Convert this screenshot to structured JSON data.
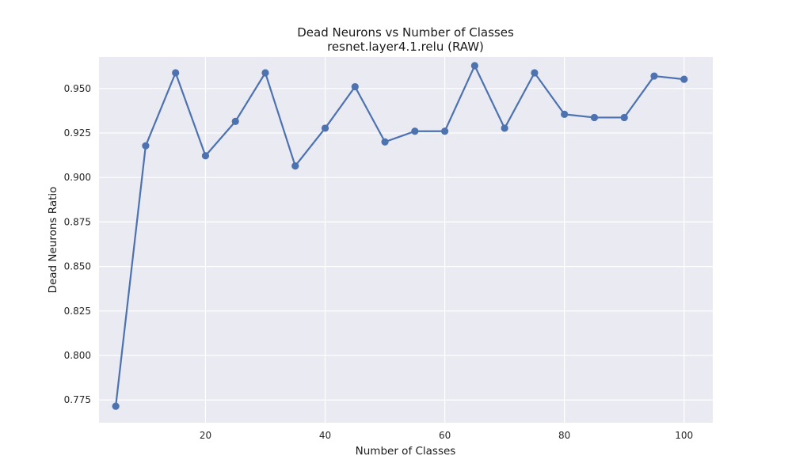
{
  "chart_data": {
    "type": "line",
    "title": "Dead Neurons vs Number of Classes",
    "subtitle": "resnet.layer4.1.relu (RAW)",
    "xlabel": "Number of Classes",
    "ylabel": "Dead Neurons Ratio",
    "xlim": [
      2.2,
      104.8
    ],
    "ylim": [
      0.7622,
      0.9677
    ],
    "xticks": [
      20,
      40,
      60,
      80,
      100
    ],
    "yticks": [
      0.775,
      0.8,
      0.825,
      0.85,
      0.875,
      0.9,
      0.925,
      0.95
    ],
    "xtick_labels": [
      "20",
      "40",
      "60",
      "80",
      "100"
    ],
    "ytick_labels": [
      "0.775",
      "0.800",
      "0.825",
      "0.850",
      "0.875",
      "0.900",
      "0.925",
      "0.950"
    ],
    "grid": true,
    "style": {
      "background": "#eaeaf2",
      "grid_color": "#ffffff",
      "line_color": "#4c72b0"
    },
    "series": [
      {
        "x": [
          5,
          10,
          15,
          20,
          25,
          30,
          35,
          40,
          45,
          50,
          55,
          60,
          65,
          70,
          75,
          80,
          85,
          90,
          95,
          100
        ],
        "values": [
          0.7715,
          0.9178,
          0.9588,
          0.9122,
          0.9315,
          0.9588,
          0.9065,
          0.9277,
          0.951,
          0.92,
          0.926,
          0.926,
          0.9628,
          0.9277,
          0.9588,
          0.9355,
          0.9337,
          0.9337,
          0.957,
          0.9552
        ]
      }
    ]
  }
}
